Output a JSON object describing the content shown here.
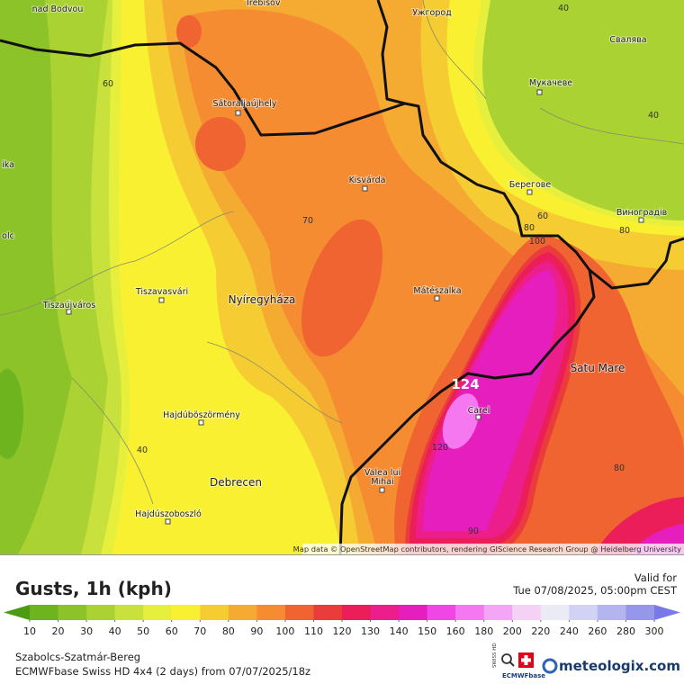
{
  "map": {
    "cities": [
      "nad Bodvou",
      "Trebišov",
      "Ужгород",
      "Свалява",
      "Мукачеве",
      "Sátoraljaújhely",
      "Kisvárda",
      "Берегове",
      "Виноградів",
      "Nyíregyháza",
      "Mátészalka",
      "Tiszavasvári",
      "Tiszaújváros",
      "Satu Mare",
      "Carei",
      "Hajdúböszörmény",
      "Debrecen",
      "Hajdúszoboszló",
      "Valea lui",
      "Mihai",
      "ika",
      "olc"
    ],
    "contour_labels": [
      40,
      60,
      40,
      70,
      80,
      60,
      100,
      80,
      124,
      120,
      40,
      80,
      90
    ],
    "attribution": "Map data © OpenStreetMap contributors, rendering GIScience Research Group @ Heidelberg University"
  },
  "legend": {
    "title": "Gusts, 1h (kph)",
    "ticks": [
      10,
      20,
      30,
      40,
      50,
      60,
      70,
      80,
      90,
      100,
      110,
      120,
      130,
      140,
      150,
      160,
      180,
      200,
      220,
      240,
      260,
      280,
      300
    ],
    "colors": [
      "#4b9b14",
      "#6eb41e",
      "#8cc328",
      "#aad232",
      "#c8e13c",
      "#e6f03c",
      "#faf032",
      "#f5cd32",
      "#f5aa32",
      "#f58c32",
      "#f06432",
      "#eb3c3c",
      "#eb1e5a",
      "#eb1e8c",
      "#e61ebe",
      "#f046e6",
      "#f578f0",
      "#f5a5f5",
      "#f5d2f5",
      "#ebebf5",
      "#d2d2f5",
      "#b4b4f0",
      "#9696eb",
      "#7878e6"
    ]
  },
  "valid": {
    "label": "Valid for",
    "time": "Tue 07/08/2025, 05:00pm CEST"
  },
  "footer": {
    "region": "Szabolcs-Szatmár-Bereg",
    "model": "ECMWFbase Swiss HD 4x4 (2 days) from  07/07/2025/18z",
    "badge_top": "SWISS HD",
    "badge_bottom": "ECMWFbase",
    "brand": "meteologix.com"
  }
}
